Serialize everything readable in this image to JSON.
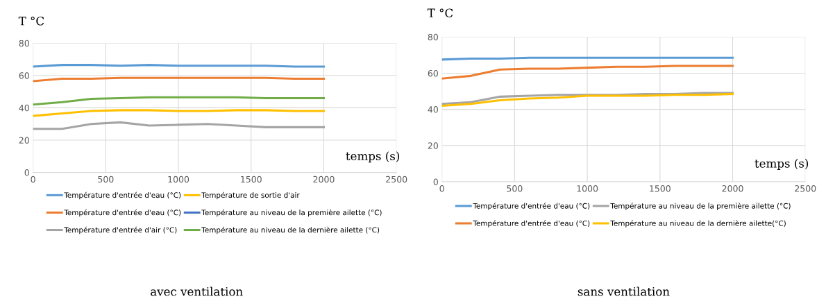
{
  "chart_data": [
    {
      "type": "line",
      "title": "avec ventilation",
      "xlabel": "temps (s)",
      "ylabel": "T °C",
      "xlim": [
        0,
        2500
      ],
      "xticks": [
        0,
        500,
        1000,
        1500,
        2000,
        2500
      ],
      "ylim": [
        0,
        80
      ],
      "yticks": [
        0,
        20,
        40,
        60,
        80
      ],
      "grid": true,
      "legend": "bottom",
      "x": [
        0,
        200,
        400,
        600,
        800,
        1000,
        1200,
        1400,
        1600,
        1800,
        2000
      ],
      "series": [
        {
          "name": "Température d'entrée d'eau (°C)",
          "color": "#5b9bd5",
          "values": [
            65.5,
            66.5,
            66.5,
            66,
            66.5,
            66,
            66,
            66,
            66,
            65.5,
            65.5
          ]
        },
        {
          "name": "Température de sortie d'air",
          "color": "#ffc000",
          "values": [
            35,
            36.5,
            38,
            38.5,
            38.5,
            38,
            38,
            38.5,
            38.5,
            38,
            38
          ]
        },
        {
          "name": "Température d'entrée d'eau (°C)",
          "color": "#ed7d31",
          "values": [
            56.5,
            58,
            58,
            58.5,
            58.5,
            58.5,
            58.5,
            58.5,
            58.5,
            58,
            58
          ]
        },
        {
          "name": "Température au niveau de la première ailette (°C)",
          "color": "#4472c4",
          "values": [
            null,
            null,
            null,
            null,
            null,
            null,
            null,
            null,
            null,
            null,
            null
          ]
        },
        {
          "name": "Température d'entrée d'air (°C)",
          "color": "#a5a5a5",
          "values": [
            27,
            27,
            30,
            31,
            29,
            29.5,
            30,
            29,
            28,
            28,
            28
          ]
        },
        {
          "name": "Température au niveau de la dernière ailette (°C)",
          "color": "#70ad47",
          "values": [
            42,
            43.5,
            45.5,
            46,
            46.5,
            46.5,
            46.5,
            46.5,
            46,
            46,
            46
          ]
        }
      ]
    },
    {
      "type": "line",
      "title": "sans ventilation",
      "xlabel": "temps (s)",
      "ylabel": "T °C",
      "xlim": [
        0,
        2500
      ],
      "xticks": [
        0,
        500,
        1000,
        1500,
        2000,
        2500
      ],
      "ylim": [
        0,
        80
      ],
      "yticks": [
        0,
        20,
        40,
        60,
        80
      ],
      "grid": true,
      "legend": "bottom",
      "x": [
        0,
        200,
        400,
        600,
        800,
        1000,
        1200,
        1400,
        1600,
        1800,
        2000
      ],
      "series": [
        {
          "name": "Température d'entrée d'eau (°C)",
          "color": "#5b9bd5",
          "values": [
            67.5,
            68,
            68,
            68.5,
            68.5,
            68.5,
            68.5,
            68.5,
            68.5,
            68.5,
            68.5
          ]
        },
        {
          "name": "Température au niveau de la première ailette (°C)",
          "color": "#a5a5a5",
          "values": [
            43,
            44,
            47,
            47.5,
            48,
            48,
            48,
            48.5,
            48.5,
            49,
            49
          ]
        },
        {
          "name": "Température d'entrée d'eau (°C)",
          "color": "#ed7d31",
          "values": [
            57,
            58.5,
            62,
            62.5,
            62.5,
            63,
            63.5,
            63.5,
            64,
            64,
            64
          ]
        },
        {
          "name": "Température au niveau de la dernière ailette(°C)",
          "color": "#ffc000",
          "values": [
            42,
            43,
            45,
            46,
            46.5,
            47.5,
            47.5,
            47.5,
            48,
            48,
            48.5
          ]
        }
      ]
    }
  ]
}
